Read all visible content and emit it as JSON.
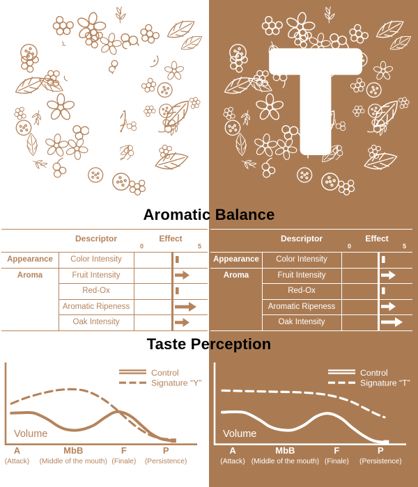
{
  "headings": {
    "aromatic_balance": "Aromatic Balance",
    "taste_perception": "Taste Perception"
  },
  "colors": {
    "background_right": "#aa7b53",
    "foreground_left": "#b5835b",
    "foreground_right": "#ffffff",
    "heading_text": "#000000"
  },
  "panels": [
    {
      "name": "signature-y",
      "letter": "Y",
      "table": {
        "descriptor_header": "Descriptor",
        "effect_header": "Effect",
        "scale_min": "0",
        "scale_max": "5",
        "rows": [
          {
            "category": "Appearance",
            "descriptor": "Color Intensity",
            "effect": "tick"
          },
          {
            "category": "Aroma",
            "descriptor": "Fruit Intensity",
            "effect": "arrow-medium"
          },
          {
            "category": "",
            "descriptor": "Red-Ox",
            "effect": "tick"
          },
          {
            "category": "",
            "descriptor": "Aromatic Ripeness",
            "effect": "arrow-large"
          },
          {
            "category": "",
            "descriptor": "Oak Intensity",
            "effect": "arrow-medium"
          }
        ]
      }
    },
    {
      "name": "signature-t",
      "letter": "T",
      "table": {
        "descriptor_header": "Descriptor",
        "effect_header": "Effect",
        "scale_min": "0",
        "scale_max": "5",
        "rows": [
          {
            "category": "Appearance",
            "descriptor": "Color Intensity",
            "effect": "tick"
          },
          {
            "category": "Aroma",
            "descriptor": "Fruit Intensity",
            "effect": "arrow-medium"
          },
          {
            "category": "",
            "descriptor": "Red-Ox",
            "effect": "tick"
          },
          {
            "category": "",
            "descriptor": "Aromatic Ripeness",
            "effect": "arrow-medium"
          },
          {
            "category": "",
            "descriptor": "Oak Intensity",
            "effect": "arrow-large"
          }
        ]
      }
    }
  ],
  "chart_data": [
    {
      "type": "line",
      "title": "Taste Perception",
      "ylabel": "Volume",
      "legend_position": "top-right",
      "grid": false,
      "y_range": [
        0,
        1
      ],
      "x_ticks": [
        {
          "label": "A",
          "sub": "(Attack)",
          "x": 6
        },
        {
          "label": "MbB",
          "sub": "(Middle of the mouth)",
          "x": 35.5
        },
        {
          "label": "F",
          "sub": "(Finale)",
          "x": 62
        },
        {
          "label": "P",
          "sub": "(Persistence)",
          "x": 84
        }
      ],
      "series": [
        {
          "name": "Control",
          "style": "solid",
          "marker_end": true,
          "points": [
            [
              3,
              0.375
            ],
            [
              9,
              0.38
            ],
            [
              15,
              0.375
            ],
            [
              22,
              0.3
            ],
            [
              28,
              0.21
            ],
            [
              33,
              0.17
            ],
            [
              39,
              0.17
            ],
            [
              46,
              0.225
            ],
            [
              52,
              0.32
            ],
            [
              57,
              0.385
            ],
            [
              61,
              0.385
            ],
            [
              66,
              0.33
            ],
            [
              71,
              0.23
            ],
            [
              76,
              0.13
            ],
            [
              81,
              0.065
            ],
            [
              85,
              0.045
            ],
            [
              87,
              0.04
            ]
          ]
        },
        {
          "name": "Signature “Y”",
          "style": "dashed",
          "marker_end": false,
          "points": [
            [
              3,
              0.49
            ],
            [
              10,
              0.555
            ],
            [
              18,
              0.61
            ],
            [
              26,
              0.65
            ],
            [
              33,
              0.665
            ],
            [
              40,
              0.655
            ],
            [
              46,
              0.61
            ],
            [
              52,
              0.53
            ],
            [
              58,
              0.42
            ],
            [
              63,
              0.315
            ],
            [
              69,
              0.2
            ],
            [
              75,
              0.115
            ],
            [
              81,
              0.068
            ],
            [
              87,
              0.055
            ]
          ]
        }
      ]
    },
    {
      "type": "line",
      "title": "Taste Perception",
      "ylabel": "Volume",
      "legend_position": "top-right",
      "grid": false,
      "y_range": [
        0,
        1
      ],
      "x_ticks": [
        {
          "label": "A",
          "sub": "(Attack)",
          "x": 9.5
        },
        {
          "label": "MbB",
          "sub": "(Middle of the mouth)",
          "x": 37
        },
        {
          "label": "F",
          "sub": "(Finale)",
          "x": 64
        },
        {
          "label": "P",
          "sub": "(Persistence)",
          "x": 87
        }
      ],
      "series": [
        {
          "name": "Control",
          "style": "solid",
          "marker_end": true,
          "points": [
            [
              4,
              0.385
            ],
            [
              10,
              0.39
            ],
            [
              16,
              0.38
            ],
            [
              23,
              0.3
            ],
            [
              29,
              0.21
            ],
            [
              35,
              0.17
            ],
            [
              41,
              0.17
            ],
            [
              47,
              0.23
            ],
            [
              53,
              0.33
            ],
            [
              58,
              0.37
            ],
            [
              62,
              0.36
            ],
            [
              67,
              0.3
            ],
            [
              72,
              0.2
            ],
            [
              78,
              0.1
            ],
            [
              83,
              0.04
            ],
            [
              87,
              0.022
            ],
            [
              89,
              0.02
            ]
          ]
        },
        {
          "name": "Signature “T”",
          "style": "dashed",
          "marker_end": false,
          "points": [
            [
              4,
              0.65
            ],
            [
              12,
              0.645
            ],
            [
              22,
              0.64
            ],
            [
              32,
              0.635
            ],
            [
              42,
              0.63
            ],
            [
              50,
              0.62
            ],
            [
              58,
              0.6
            ],
            [
              65,
              0.565
            ],
            [
              72,
              0.51
            ],
            [
              79,
              0.43
            ],
            [
              85,
              0.36
            ],
            [
              89,
              0.325
            ]
          ]
        }
      ]
    }
  ]
}
